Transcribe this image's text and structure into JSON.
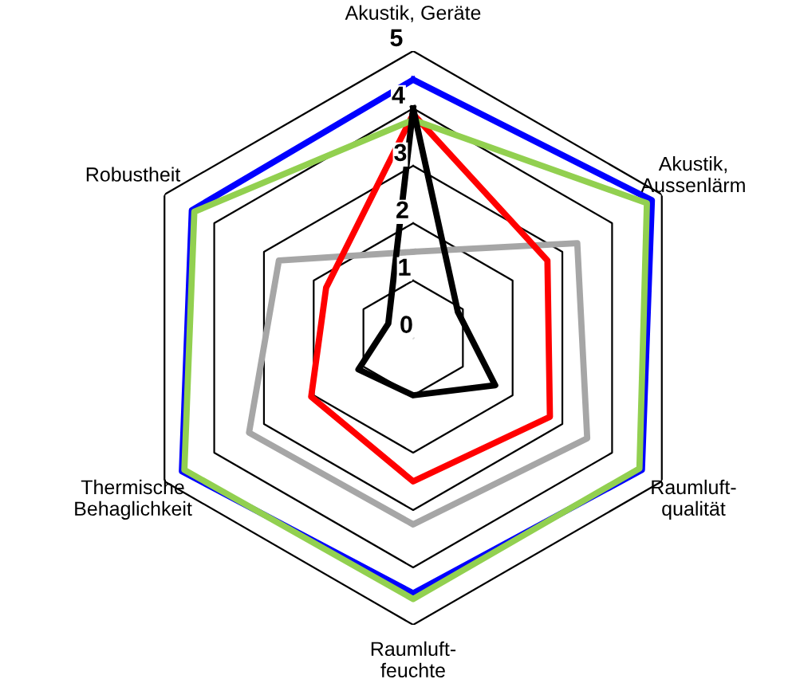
{
  "chart_data": {
    "type": "radar",
    "categories": [
      "Akustik, Geräte",
      "Akustik,\nAussenlärm",
      "Raumluft-\nqualität",
      "Raumluft-\nfeuchte",
      "Thermische\nBehaglichkeit",
      "Robustheit"
    ],
    "ylim": [
      0,
      5
    ],
    "yticks": [
      0,
      1,
      2,
      3,
      4,
      5
    ],
    "grid": true,
    "line_style": "solid",
    "marker": "none",
    "series": [
      {
        "color": "#a6a6a6",
        "values": [
          1.5,
          3.3,
          3.5,
          3.25,
          3.3,
          2.7
        ]
      },
      {
        "color": "#ff0000",
        "values": [
          3.9,
          2.7,
          2.75,
          2.5,
          2.05,
          1.75
        ]
      },
      {
        "color": "#0000ff",
        "values": [
          4.5,
          4.8,
          4.6,
          4.45,
          4.65,
          4.45
        ]
      },
      {
        "color": "#92d050",
        "values": [
          3.8,
          4.7,
          4.55,
          4.55,
          4.6,
          4.4
        ]
      },
      {
        "color": "#000000",
        "values": [
          4.0,
          0.9,
          1.65,
          1.0,
          1.1,
          0.5
        ]
      }
    ]
  }
}
